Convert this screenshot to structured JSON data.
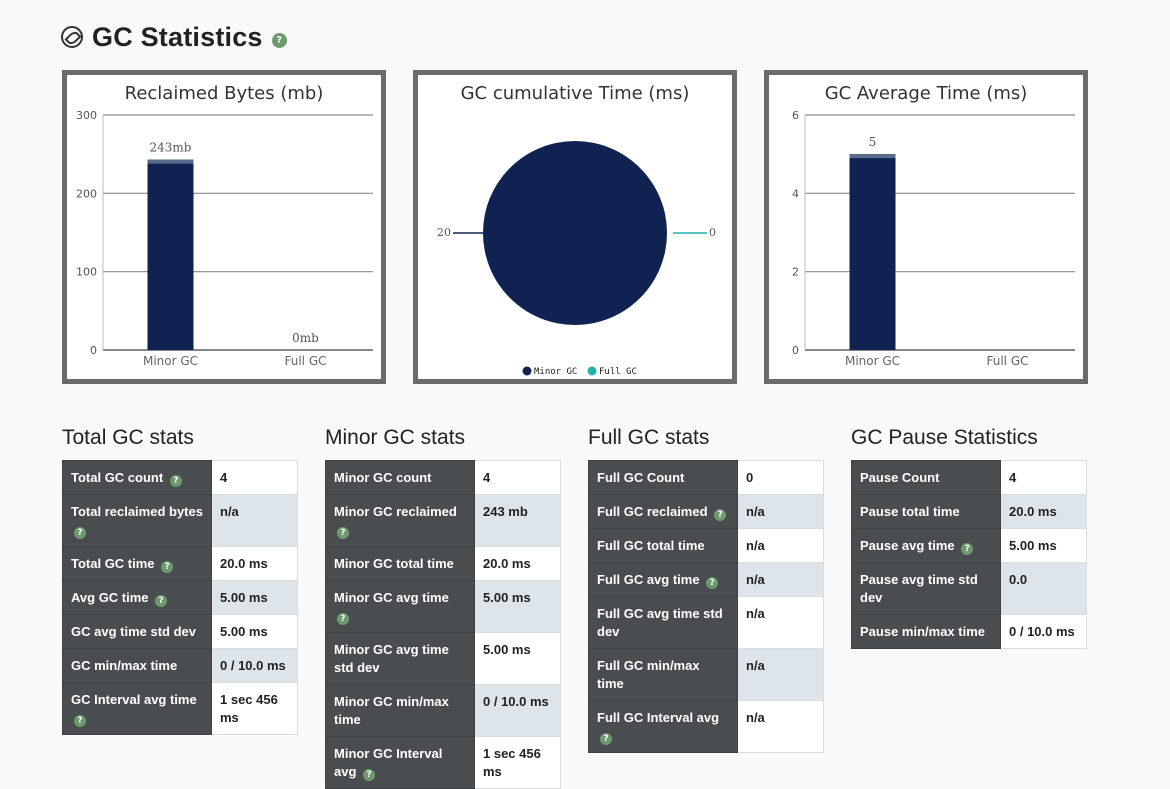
{
  "header": {
    "title": "GC Statistics",
    "help": "?"
  },
  "charts": [
    {
      "type": "bar",
      "title": "Reclaimed Bytes (mb)",
      "categories": [
        "Minor GC",
        "Full GC"
      ],
      "values": [
        243,
        0
      ],
      "labels": [
        "243mb",
        "0mb"
      ],
      "yticks": [
        "0",
        "100",
        "200",
        "300"
      ],
      "ylim": [
        0,
        300
      ],
      "color": "#0f2251"
    },
    {
      "type": "pie",
      "title": "GC cumulative Time (ms)",
      "categories": [
        "Minor GC",
        "Full GC"
      ],
      "values": [
        20,
        0
      ],
      "labels": [
        "20",
        "0"
      ],
      "colors": [
        "#0f2251",
        "#21b3a8"
      ],
      "legend": [
        "Minor GC",
        "Full GC"
      ]
    },
    {
      "type": "bar",
      "title": "GC Average Time (ms)",
      "categories": [
        "Minor GC",
        "Full GC"
      ],
      "values": [
        5,
        0
      ],
      "labels": [
        "5",
        ""
      ],
      "yticks": [
        "0",
        "2",
        "4",
        "6"
      ],
      "ylim": [
        0,
        6
      ],
      "color": "#0f2251"
    }
  ],
  "tables": [
    {
      "title": "Total GC stats",
      "rows": [
        {
          "label": "Total GC count",
          "value": "4",
          "help": true
        },
        {
          "label": "Total reclaimed bytes",
          "value": "n/a",
          "help": true
        },
        {
          "label": "Total GC time",
          "value": "20.0 ms",
          "help": true
        },
        {
          "label": "Avg GC time",
          "value": "5.00 ms",
          "help": true
        },
        {
          "label": "GC avg time std dev",
          "value": "5.00 ms",
          "help": false
        },
        {
          "label": "GC min/max time",
          "value": "0 / 10.0 ms",
          "help": false
        },
        {
          "label": "GC Interval avg time",
          "value": "1 sec 456 ms",
          "help": true
        }
      ]
    },
    {
      "title": "Minor GC stats",
      "rows": [
        {
          "label": "Minor GC count",
          "value": "4",
          "help": false
        },
        {
          "label": "Minor GC reclaimed",
          "value": "243 mb",
          "help": true
        },
        {
          "label": "Minor GC total time",
          "value": "20.0 ms",
          "help": false
        },
        {
          "label": "Minor GC avg time",
          "value": "5.00 ms",
          "help": true
        },
        {
          "label": "Minor GC avg time std dev",
          "value": "5.00 ms",
          "help": false
        },
        {
          "label": "Minor GC min/max time",
          "value": "0 / 10.0 ms",
          "help": false
        },
        {
          "label": "Minor GC Interval avg",
          "value": "1 sec 456 ms",
          "help": true
        }
      ]
    },
    {
      "title": "Full GC stats",
      "rows": [
        {
          "label": "Full GC Count",
          "value": "0",
          "help": false
        },
        {
          "label": "Full GC reclaimed",
          "value": "n/a",
          "help": true
        },
        {
          "label": "Full GC total time",
          "value": "n/a",
          "help": false
        },
        {
          "label": "Full GC avg time",
          "value": "n/a",
          "help": true
        },
        {
          "label": "Full GC avg time std dev",
          "value": "n/a",
          "help": false
        },
        {
          "label": "Full GC min/max time",
          "value": "n/a",
          "help": false
        },
        {
          "label": "Full GC Interval avg",
          "value": "n/a",
          "help": true
        }
      ]
    },
    {
      "title": "GC Pause Statistics",
      "rows": [
        {
          "label": "Pause Count",
          "value": "4",
          "help": false
        },
        {
          "label": "Pause total time",
          "value": "20.0 ms",
          "help": false
        },
        {
          "label": "Pause avg time",
          "value": "5.00 ms",
          "help": true
        },
        {
          "label": "Pause avg time std dev",
          "value": "0.0",
          "help": false
        },
        {
          "label": "Pause min/max time",
          "value": "0 / 10.0 ms",
          "help": false
        }
      ]
    }
  ],
  "chart_data": [
    {
      "type": "bar",
      "title": "Reclaimed Bytes (mb)",
      "categories": [
        "Minor GC",
        "Full GC"
      ],
      "values": [
        243,
        0
      ],
      "ylim": [
        0,
        300
      ],
      "grid": true
    },
    {
      "type": "pie",
      "title": "GC cumulative Time (ms)",
      "categories": [
        "Minor GC",
        "Full GC"
      ],
      "values": [
        20,
        0
      ],
      "legend": "bottom"
    },
    {
      "type": "bar",
      "title": "GC Average Time (ms)",
      "categories": [
        "Minor GC",
        "Full GC"
      ],
      "values": [
        5,
        0
      ],
      "ylim": [
        0,
        6
      ],
      "grid": true
    }
  ]
}
